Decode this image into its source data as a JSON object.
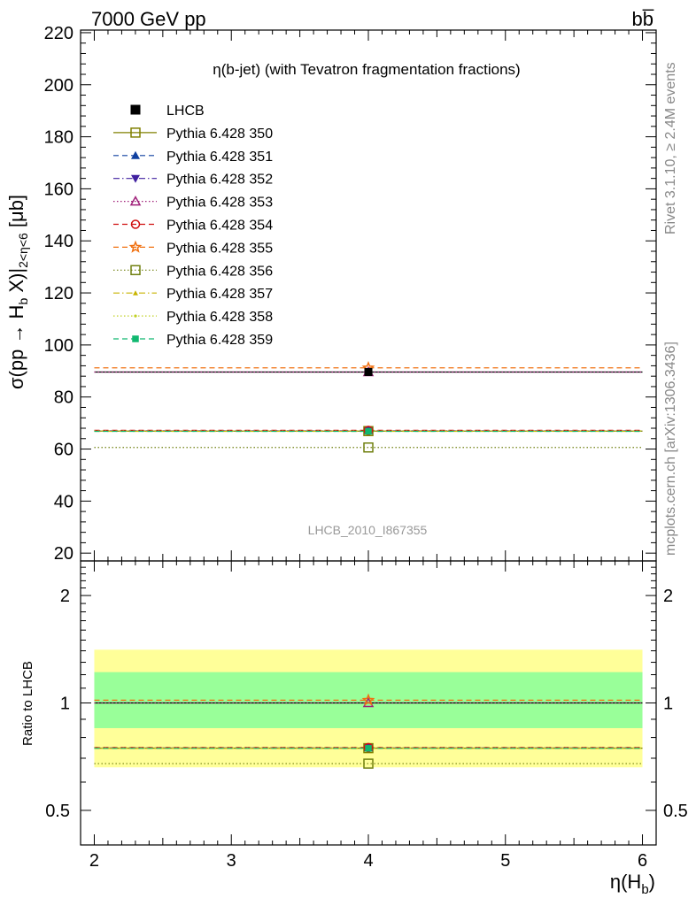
{
  "header": {
    "energy_label": "7000 GeV pp",
    "process_label": "bb̅"
  },
  "side_labels": {
    "rivet": "Rivet 3.1.10, ≥ 2.4M events",
    "mcplots": "mcplots.cern.ch [arXiv:1306.3436]"
  },
  "chart_data": [
    {
      "panel": "main",
      "type": "scatter",
      "title": "η(b-jet) (with Tevatron fragmentation fractions)",
      "watermark": "LHCB_2010_I867355",
      "ylabel": "σ(pp → H_b X)|_{2<η<6} [μb]",
      "ylabel_parts": {
        "pre": "σ(pp → H",
        "sub1": "b",
        "mid": " X)|",
        "sub2": "2<η<6",
        "post": " [μb]"
      },
      "xlim": [
        1.9,
        6.1
      ],
      "ylim": [
        17,
        221
      ],
      "y_ticks": [
        20,
        40,
        60,
        80,
        100,
        120,
        140,
        160,
        180,
        200,
        220
      ],
      "x_range_bin": [
        2,
        6
      ],
      "x_center": 4,
      "grid": false,
      "legend_placement": "top-left",
      "series": [
        {
          "name": "LHCB",
          "value": 89.6,
          "color": "#000000",
          "marker": "filled-square",
          "line": "none",
          "data": true
        },
        {
          "name": "Pythia 6.428 350",
          "value": 66.9,
          "color": "#808000",
          "marker": "open-square",
          "line": "solid"
        },
        {
          "name": "Pythia 6.428 351",
          "value": 67.1,
          "color": "#1040a0",
          "marker": "filled-triangle-up",
          "line": "dashed"
        },
        {
          "name": "Pythia 6.428 352",
          "value": 67.0,
          "color": "#4020a0",
          "marker": "filled-triangle-down",
          "line": "dashdot"
        },
        {
          "name": "Pythia 6.428 353",
          "value": 89.6,
          "color": "#a0207a",
          "marker": "open-triangle-up",
          "line": "dotted"
        },
        {
          "name": "Pythia 6.428 354",
          "value": 67.2,
          "color": "#d01010",
          "marker": "open-circle",
          "line": "dashed"
        },
        {
          "name": "Pythia 6.428 355",
          "value": 91.2,
          "color": "#f07010",
          "marker": "open-star",
          "line": "dashed"
        },
        {
          "name": "Pythia 6.428 356",
          "value": 60.6,
          "color": "#708010",
          "marker": "open-square",
          "line": "dotted"
        },
        {
          "name": "Pythia 6.428 357",
          "value": 66.8,
          "color": "#c8b400",
          "marker": "filled-tri-small",
          "line": "dashdot"
        },
        {
          "name": "Pythia 6.428 358",
          "value": 67.0,
          "color": "#c0d020",
          "marker": "dot",
          "line": "dotted"
        },
        {
          "name": "Pythia 6.428 359",
          "value": 66.8,
          "color": "#10b870",
          "marker": "filled-square-small",
          "line": "dashed"
        }
      ]
    },
    {
      "panel": "ratio",
      "type": "scatter",
      "ylabel": "Ratio to LHCB",
      "xlabel": "η(H_b)",
      "xlabel_parts": {
        "pre": "η(H",
        "sub": "b",
        "post": ")"
      },
      "xlim": [
        1.9,
        6.1
      ],
      "ylim": [
        0.4,
        2.5
      ],
      "y_scale": "log",
      "y_ticks": [
        0.5,
        1,
        2
      ],
      "y_tick_labels": [
        "0.5",
        "1",
        "2"
      ],
      "x_ticks": [
        2,
        3,
        4,
        5,
        6
      ],
      "x_tick_labels": [
        "2",
        "3",
        "4",
        "5",
        "6"
      ],
      "bands": [
        {
          "name": "outer",
          "low": 0.66,
          "high": 1.41,
          "color": "#ffff99"
        },
        {
          "name": "inner",
          "low": 0.85,
          "high": 1.22,
          "color": "#99ff99"
        }
      ],
      "ratios": [
        1.0,
        0.747,
        0.749,
        0.748,
        1.0,
        0.75,
        1.018,
        0.676,
        0.746,
        0.748,
        0.746
      ]
    }
  ]
}
